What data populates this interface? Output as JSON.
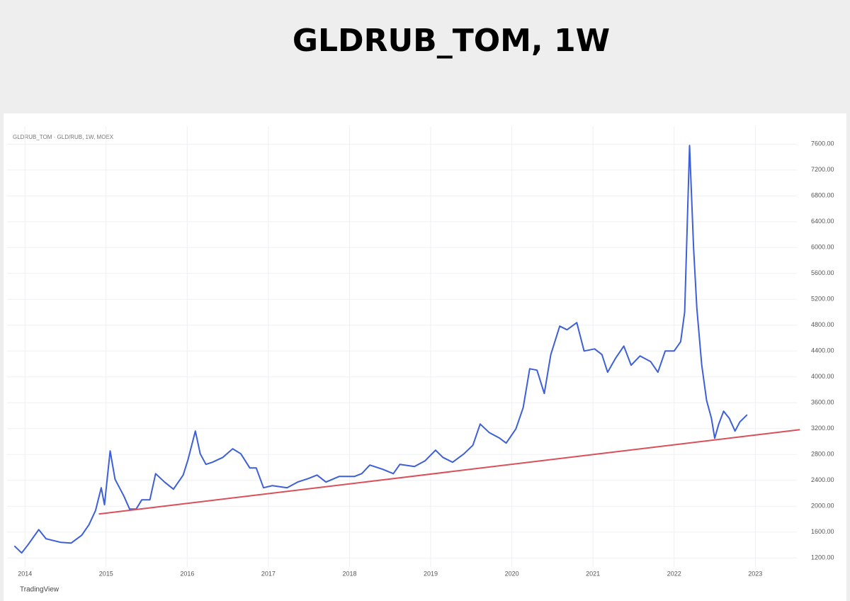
{
  "chart_data": {
    "type": "line",
    "title": "GLDRUB_TOM, 1W",
    "subtitle": "GLDRUB_TOM · GLD/RUB, 1W, MOEX",
    "annotations": [
      "TradingView"
    ],
    "grid": true,
    "xlim": [
      2013.78,
      2023.46
    ],
    "xticks": [
      2014,
      2015,
      2016,
      2017,
      2018,
      2019,
      2020,
      2021,
      2022,
      2023
    ],
    "ylim": [
      1060,
      7790
    ],
    "yticks": [
      {
        "value": 1200,
        "label": "1200.00"
      },
      {
        "value": 1600,
        "label": "1600.00"
      },
      {
        "value": 2000,
        "label": "2000.00"
      },
      {
        "value": 2400,
        "label": "2400.00"
      },
      {
        "value": 2800,
        "label": "2800.00"
      },
      {
        "value": 3200,
        "label": "3200.00"
      },
      {
        "value": 3600,
        "label": "3600.00"
      },
      {
        "value": 4000,
        "label": "4000.00"
      },
      {
        "value": 4400,
        "label": "4400.00"
      },
      {
        "value": 4800,
        "label": "4800.00"
      },
      {
        "value": 5200,
        "label": "5200.00"
      },
      {
        "value": 5600,
        "label": "5600.00"
      },
      {
        "value": 6000,
        "label": "6000.00"
      },
      {
        "value": 6400,
        "label": "6400.00"
      },
      {
        "value": 6800,
        "label": "6800.00"
      },
      {
        "value": 7200,
        "label": "7200.00"
      },
      {
        "value": 7600,
        "label": "7600.00"
      }
    ],
    "series": [
      {
        "color": "#3d5fd8",
        "x": [
          2013.87,
          2013.96,
          2014.04,
          2014.17,
          2014.26,
          2014.44,
          2014.57,
          2014.7,
          2014.79,
          2014.87,
          2014.94,
          2014.98,
          2015.05,
          2015.11,
          2015.22,
          2015.29,
          2015.37,
          2015.44,
          2015.54,
          2015.61,
          2015.72,
          2015.83,
          2015.95,
          2016.01,
          2016.1,
          2016.16,
          2016.23,
          2016.31,
          2016.44,
          2016.56,
          2016.66,
          2016.77,
          2016.85,
          2016.94,
          2017.05,
          2017.23,
          2017.36,
          2017.49,
          2017.6,
          2017.71,
          2017.87,
          2018.06,
          2018.15,
          2018.25,
          2018.41,
          2018.54,
          2018.62,
          2018.8,
          2018.93,
          2019.06,
          2019.15,
          2019.27,
          2019.41,
          2019.52,
          2019.61,
          2019.72,
          2019.85,
          2019.93,
          2020.05,
          2020.14,
          2020.22,
          2020.31,
          2020.4,
          2020.48,
          2020.59,
          2020.68,
          2020.8,
          2020.89,
          2021.02,
          2021.11,
          2021.18,
          2021.28,
          2021.38,
          2021.47,
          2021.58,
          2021.71,
          2021.8,
          2021.89,
          2022.0,
          2022.08,
          2022.13,
          2022.19,
          2022.24,
          2022.28,
          2022.34,
          2022.4,
          2022.46,
          2022.5,
          2022.55,
          2022.61,
          2022.68,
          2022.75,
          2022.81,
          2022.9
        ],
        "values": [
          1386,
          1277,
          1408,
          1638,
          1496,
          1441,
          1430,
          1551,
          1715,
          1934,
          2285,
          2022,
          2855,
          2417,
          2154,
          1956,
          1956,
          2099,
          2099,
          2504,
          2373,
          2263,
          2482,
          2723,
          3162,
          2811,
          2647,
          2680,
          2756,
          2888,
          2811,
          2592,
          2592,
          2285,
          2318,
          2285,
          2373,
          2427,
          2482,
          2373,
          2460,
          2460,
          2504,
          2636,
          2570,
          2504,
          2647,
          2614,
          2701,
          2866,
          2756,
          2680,
          2811,
          2943,
          3271,
          3140,
          3052,
          2976,
          3195,
          3524,
          4126,
          4104,
          3743,
          4345,
          4784,
          4729,
          4839,
          4400,
          4433,
          4345,
          4072,
          4291,
          4477,
          4181,
          4324,
          4236,
          4072,
          4400,
          4400,
          4543,
          5003,
          7579,
          5989,
          5058,
          4181,
          3633,
          3359,
          3052,
          3271,
          3469,
          3359,
          3162,
          3304,
          3414
        ]
      },
      {
        "color": "#d9505a",
        "x": [
          2014.91,
          2023.55
        ],
        "values": [
          1879,
          3184
        ]
      }
    ]
  }
}
